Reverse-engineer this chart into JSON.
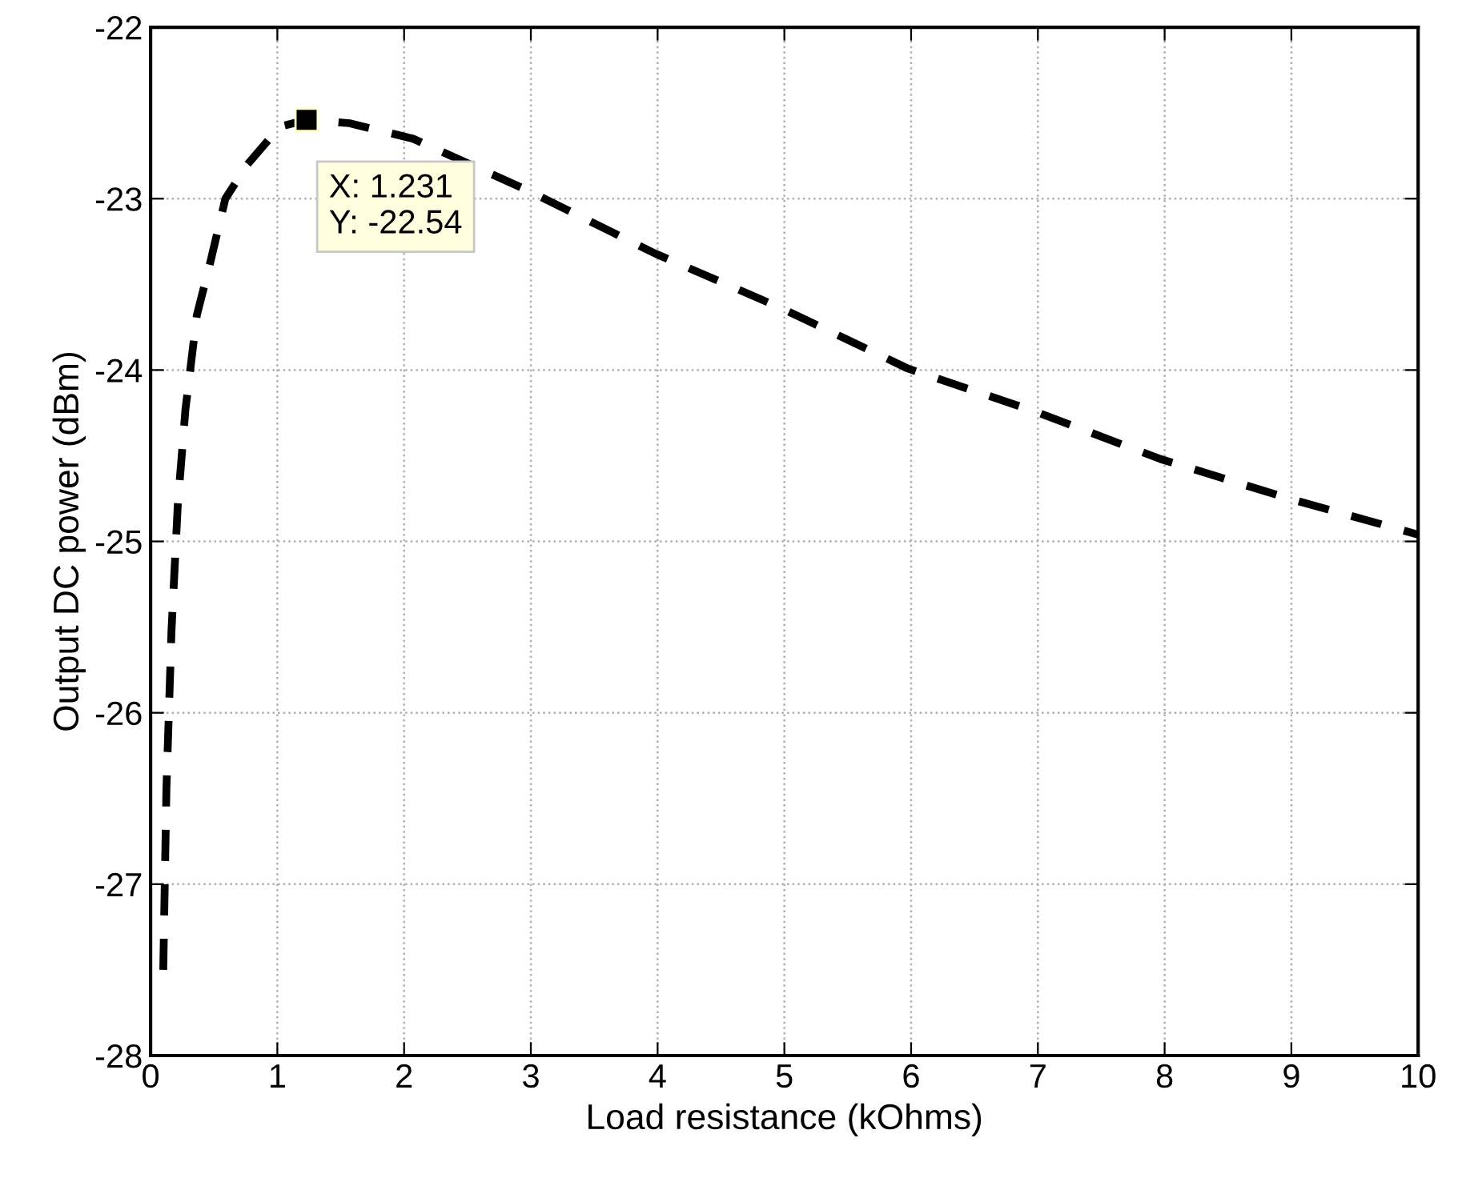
{
  "chart_data": {
    "type": "line",
    "xlabel": "Load resistance (kOhms)",
    "ylabel": "Output DC power (dBm)",
    "xlim": [
      0,
      10
    ],
    "xticks": [
      0,
      1,
      2,
      3,
      4,
      5,
      6,
      7,
      8,
      9,
      10
    ],
    "ylim": [
      -28,
      -22
    ],
    "yticks": [
      -28,
      -27,
      -26,
      -25,
      -24,
      -23,
      -22
    ],
    "grid": true,
    "line_style": "dashed",
    "marker": "none",
    "series": [
      {
        "color": "#000000",
        "x": [
          0.1,
          0.125,
          0.165,
          0.215,
          0.275,
          0.365,
          0.465,
          0.59,
          0.765,
          1.02,
          1.231,
          1.57,
          2.07,
          2.97,
          3.98,
          4.98,
          5.97,
          6.97,
          7.97,
          8.98,
          10
        ],
        "values": [
          -27.5,
          -26.44,
          -25.52,
          -24.78,
          -24.23,
          -23.68,
          -23.39,
          -23.0,
          -22.8,
          -22.58,
          -22.54,
          -22.56,
          -22.65,
          -22.95,
          -23.32,
          -23.64,
          -23.99,
          -24.24,
          -24.52,
          -24.75,
          -24.96
        ]
      }
    ],
    "annotations": [
      {
        "text": "X: 1.231\nY: -22.54",
        "x": 1.231,
        "y": -22.54
      }
    ]
  }
}
